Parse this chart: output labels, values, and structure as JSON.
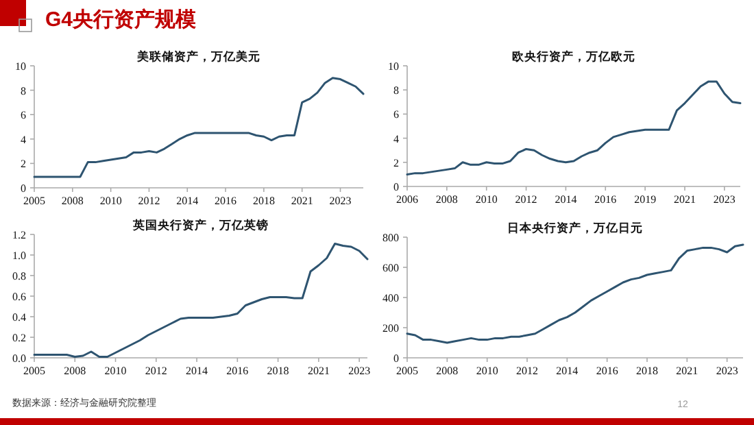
{
  "chart_data": [
    {
      "type": "other",
      "title": "G4央行资产规模",
      "annotations": [
        "数据来源：经济与金融研究院整理",
        "12"
      ]
    },
    {
      "type": "line",
      "title": "美联储资产，万亿美元",
      "ylim": [
        0,
        10
      ],
      "yticks": [
        0,
        2,
        4,
        6,
        8,
        10
      ],
      "categories": [
        "2005",
        null,
        null,
        null,
        null,
        "2008",
        null,
        null,
        null,
        null,
        "2010",
        null,
        null,
        null,
        null,
        "2012",
        null,
        null,
        null,
        null,
        "2014",
        null,
        null,
        null,
        null,
        "2016",
        null,
        null,
        null,
        null,
        "2018",
        null,
        null,
        null,
        null,
        "2021",
        null,
        null,
        null,
        null,
        "2023",
        null,
        null,
        null
      ],
      "series": [
        {
          "color": "#2e5470",
          "values": [
            0.9,
            0.9,
            0.9,
            0.9,
            0.9,
            0.9,
            0.9,
            2.1,
            2.1,
            2.2,
            2.3,
            2.4,
            2.5,
            2.9,
            2.9,
            3.0,
            2.9,
            3.2,
            3.6,
            4.0,
            4.3,
            4.5,
            4.5,
            4.5,
            4.5,
            4.5,
            4.5,
            4.5,
            4.5,
            4.3,
            4.2,
            3.9,
            4.2,
            4.3,
            4.3,
            7.0,
            7.3,
            7.8,
            8.6,
            9.0,
            8.9,
            8.6,
            8.3,
            7.7
          ]
        }
      ]
    },
    {
      "type": "line",
      "title": "欧央行资产，万亿欧元",
      "ylim": [
        0,
        10
      ],
      "yticks": [
        0,
        2,
        4,
        6,
        8,
        10
      ],
      "categories": [
        "2006",
        null,
        null,
        null,
        null,
        "2008",
        null,
        null,
        null,
        null,
        "2010",
        null,
        null,
        null,
        null,
        "2012",
        null,
        null,
        null,
        null,
        "2014",
        null,
        null,
        null,
        null,
        "2016",
        null,
        null,
        null,
        null,
        "2019",
        null,
        null,
        null,
        null,
        "2021",
        null,
        null,
        null,
        null,
        "2023",
        null,
        null
      ],
      "series": [
        {
          "color": "#2e5470",
          "values": [
            1.0,
            1.1,
            1.1,
            1.2,
            1.3,
            1.4,
            1.5,
            2.0,
            1.8,
            1.8,
            2.0,
            1.9,
            1.9,
            2.1,
            2.8,
            3.1,
            3.0,
            2.6,
            2.3,
            2.1,
            2.0,
            2.1,
            2.5,
            2.8,
            3.0,
            3.6,
            4.1,
            4.3,
            4.5,
            4.6,
            4.7,
            4.7,
            4.7,
            4.7,
            6.3,
            6.9,
            7.6,
            8.3,
            8.7,
            8.7,
            7.7,
            7.0,
            6.9
          ]
        }
      ]
    },
    {
      "type": "line",
      "title": "英国央行资产，万亿英镑",
      "ylim": [
        0,
        1.2
      ],
      "yticks": [
        {
          "value": 0,
          "label": "0.0"
        },
        {
          "value": 0.2,
          "label": "0.2"
        },
        {
          "value": 0.4,
          "label": "0.4"
        },
        {
          "value": 0.6,
          "label": "0.6"
        },
        {
          "value": 0.8,
          "label": "0.8"
        },
        {
          "value": 1,
          "label": "1.0"
        },
        {
          "value": 1.2,
          "label": "1.2"
        }
      ],
      "categories": [
        "2005",
        null,
        null,
        null,
        null,
        "2008",
        null,
        null,
        null,
        null,
        "2010",
        null,
        null,
        null,
        null,
        "2012",
        null,
        null,
        null,
        null,
        "2014",
        null,
        null,
        null,
        null,
        "2016",
        null,
        null,
        null,
        null,
        "2018",
        null,
        null,
        null,
        null,
        "2021",
        null,
        null,
        null,
        null,
        "2023",
        null
      ],
      "series": [
        {
          "color": "#2e5470",
          "values": [
            0.03,
            0.03,
            0.03,
            0.03,
            0.03,
            0.01,
            0.02,
            0.06,
            0.01,
            0.01,
            0.05,
            0.09,
            0.13,
            0.17,
            0.22,
            0.26,
            0.3,
            0.34,
            0.38,
            0.39,
            0.39,
            0.39,
            0.39,
            0.4,
            0.41,
            0.43,
            0.51,
            0.54,
            0.57,
            0.59,
            0.59,
            0.59,
            0.58,
            0.58,
            0.84,
            0.9,
            0.97,
            1.11,
            1.09,
            1.08,
            1.04,
            0.96
          ]
        }
      ]
    },
    {
      "type": "line",
      "title": "日本央行资产，万亿日元",
      "ylim": [
        0,
        800
      ],
      "yticks": [
        0,
        200,
        400,
        600,
        800
      ],
      "categories": [
        "2005",
        null,
        null,
        null,
        null,
        "2008",
        null,
        null,
        null,
        null,
        "2010",
        null,
        null,
        null,
        null,
        "2012",
        null,
        null,
        null,
        null,
        "2014",
        null,
        null,
        null,
        null,
        "2016",
        null,
        null,
        null,
        null,
        "2018",
        null,
        null,
        null,
        null,
        "2021",
        null,
        null,
        null,
        null,
        "2023",
        null,
        null
      ],
      "series": [
        {
          "color": "#2e5470",
          "values": [
            160,
            150,
            120,
            120,
            110,
            100,
            110,
            120,
            130,
            120,
            120,
            130,
            130,
            140,
            140,
            150,
            160,
            190,
            220,
            250,
            270,
            300,
            340,
            380,
            410,
            440,
            470,
            500,
            520,
            530,
            550,
            560,
            570,
            580,
            660,
            710,
            720,
            730,
            730,
            720,
            700,
            740,
            750
          ]
        }
      ]
    }
  ]
}
